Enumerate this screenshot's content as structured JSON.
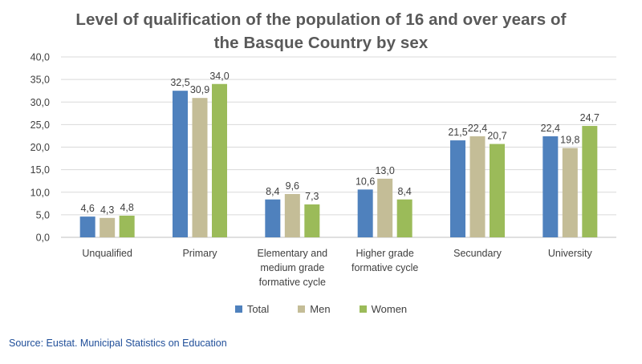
{
  "chart_data": {
    "type": "bar",
    "title_lines": [
      "Level of qualification of the population of 16 and over years of",
      "the Basque Country by sex"
    ],
    "categories": [
      [
        "Unqualified"
      ],
      [
        "Primary"
      ],
      [
        "Elementary and",
        "medium grade",
        "formative cycle"
      ],
      [
        "Higher grade",
        "formative cycle"
      ],
      [
        "Secundary"
      ],
      [
        "University"
      ]
    ],
    "series": [
      {
        "name": "Total",
        "color": "#4F81BD",
        "values": [
          4.6,
          32.5,
          8.4,
          10.6,
          21.5,
          22.4
        ]
      },
      {
        "name": "Men",
        "color": "#C4BD97",
        "values": [
          4.3,
          30.9,
          9.6,
          13.0,
          22.4,
          19.8
        ]
      },
      {
        "name": "Women",
        "color": "#9BBB59",
        "values": [
          4.8,
          34.0,
          7.3,
          8.4,
          20.7,
          24.7
        ]
      }
    ],
    "ylim": [
      0,
      40
    ],
    "yticks": [
      0,
      5,
      10,
      15,
      20,
      25,
      30,
      35,
      40
    ],
    "number_format": "comma_decimal_1",
    "grid": true,
    "legend_position": "bottom"
  },
  "source": "Source: Eustat. Municipal Statistics on Education"
}
